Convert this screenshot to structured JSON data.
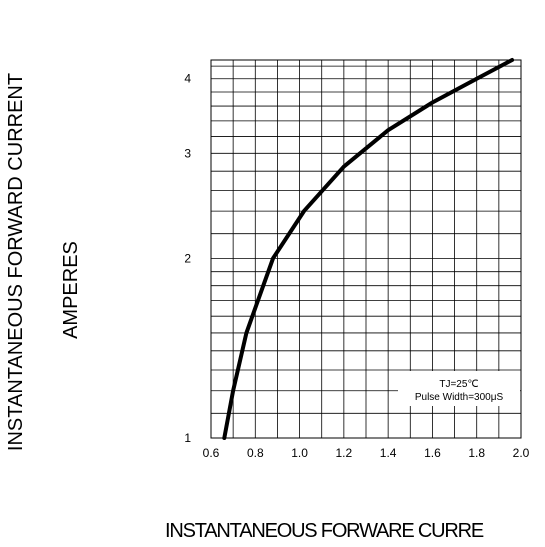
{
  "chart_data": {
    "type": "line",
    "title": "",
    "ylabel_line1": "INSTANTANEOUS FORWARD CURRENT",
    "ylabel_line2": "AMPERES",
    "xlabel": "INSTANTANEOUS FORWARE CURRE",
    "x_ticks": [
      "0.6",
      "0.8",
      "1.0",
      "1.2",
      "1.4",
      "1.6",
      "1.8",
      "2.0"
    ],
    "y_ticks": [
      "1",
      "2",
      "3",
      "4"
    ],
    "xlim": [
      0.6,
      2.0
    ],
    "ylim": [
      1,
      4.3
    ],
    "y_scale": "log",
    "grid": true,
    "annotation": [
      "TJ=25℃",
      "Pulse Width=300μS"
    ],
    "annotation_placement": "bottom-right",
    "series": [
      {
        "x": [
          0.66,
          0.7,
          0.76,
          0.88,
          1.02,
          1.2,
          1.4,
          1.6,
          1.8,
          1.96
        ],
        "y": [
          1.0,
          1.2,
          1.5,
          2.0,
          2.4,
          2.85,
          3.28,
          3.65,
          4.0,
          4.3
        ]
      }
    ]
  }
}
